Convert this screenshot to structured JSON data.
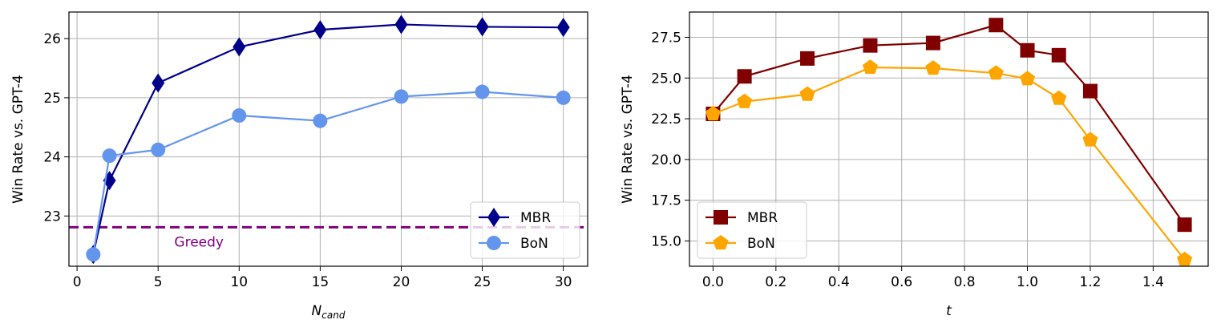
{
  "chart_data": [
    {
      "type": "line",
      "xlabel": "N",
      "xlabel_sub": "cand",
      "ylabel": "Win Rate vs. GPT-4",
      "xlim": [
        -0.5,
        31.5
      ],
      "ylim": [
        22.15,
        26.45
      ],
      "xticks": [
        0,
        5,
        10,
        15,
        20,
        25,
        30
      ],
      "yticks": [
        23,
        24,
        25,
        26
      ],
      "xtick_labels": [
        "0",
        "5",
        "10",
        "15",
        "20",
        "25",
        "30"
      ],
      "ytick_labels": [
        "23",
        "24",
        "25",
        "26"
      ],
      "grid": true,
      "legend_position": "lower-right",
      "series": [
        {
          "name": "MBR",
          "color": "#00008b",
          "marker": "diamond",
          "x": [
            1,
            2,
            5,
            10,
            15,
            20,
            25,
            30
          ],
          "y": [
            22.35,
            23.6,
            25.25,
            25.86,
            26.15,
            26.24,
            26.2,
            26.19
          ]
        },
        {
          "name": "BoN",
          "color": "#6495ed",
          "marker": "circle",
          "x": [
            1,
            2,
            5,
            10,
            15,
            20,
            25,
            30
          ],
          "y": [
            22.35,
            24.02,
            24.12,
            24.7,
            24.61,
            25.02,
            25.1,
            25.0
          ]
        }
      ],
      "hline": {
        "y": 22.81,
        "label": "Greedy",
        "color": "#800080",
        "style": "dashed"
      }
    },
    {
      "type": "line",
      "xlabel": "t",
      "ylabel": "Win Rate vs. GPT-4",
      "xlim": [
        -0.075,
        1.575
      ],
      "ylim": [
        13.45,
        29.05
      ],
      "xticks": [
        0.0,
        0.2,
        0.4,
        0.6,
        0.8,
        1.0,
        1.2,
        1.4
      ],
      "yticks": [
        15.0,
        17.5,
        20.0,
        22.5,
        25.0,
        27.5
      ],
      "xtick_labels": [
        "0.0",
        "0.2",
        "0.4",
        "0.6",
        "0.8",
        "1.0",
        "1.2",
        "1.4"
      ],
      "ytick_labels": [
        "15.0",
        "17.5",
        "20.0",
        "22.5",
        "25.0",
        "27.5"
      ],
      "grid": true,
      "legend_position": "lower-left",
      "series": [
        {
          "name": "MBR",
          "color": "#800000",
          "marker": "square",
          "x": [
            0.0,
            0.1,
            0.3,
            0.5,
            0.7,
            0.9,
            1.0,
            1.1,
            1.2,
            1.5
          ],
          "y": [
            22.8,
            25.1,
            26.2,
            27.0,
            27.15,
            28.25,
            26.7,
            26.4,
            24.2,
            16.0
          ]
        },
        {
          "name": "BoN",
          "color": "#ffa500",
          "marker": "pentagon",
          "x": [
            0.0,
            0.1,
            0.3,
            0.5,
            0.7,
            0.9,
            1.0,
            1.1,
            1.2,
            1.5
          ],
          "y": [
            22.8,
            23.55,
            24.0,
            25.65,
            25.6,
            25.3,
            24.95,
            23.75,
            21.2,
            13.85
          ]
        }
      ]
    }
  ]
}
